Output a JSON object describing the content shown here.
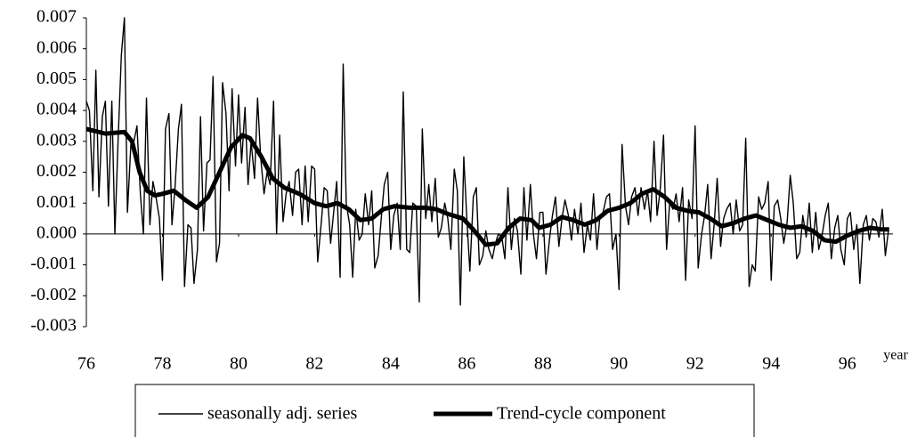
{
  "chart_data": {
    "type": "line",
    "x_label": "year",
    "xlim": [
      76,
      97.2
    ],
    "xticks": [
      76,
      78,
      80,
      82,
      84,
      86,
      88,
      90,
      92,
      94,
      96
    ],
    "ylim": [
      -0.003,
      0.007
    ],
    "yticks": [
      {
        "value": 0.007,
        "label": "0.007"
      },
      {
        "value": 0.006,
        "label": "0.006"
      },
      {
        "value": 0.005,
        "label": "0.005"
      },
      {
        "value": 0.004,
        "label": "0.004"
      },
      {
        "value": 0.003,
        "label": "0.003"
      },
      {
        "value": 0.002,
        "label": "0.002"
      },
      {
        "value": 0.001,
        "label": "0.001"
      },
      {
        "value": 0,
        "label": "0.000"
      },
      {
        "value": -0.001,
        "label": "-0.001"
      },
      {
        "value": -0.002,
        "label": "-0.002"
      },
      {
        "value": -0.003,
        "label": "-0.003"
      }
    ],
    "series": [
      {
        "name": "seasonally adj. series",
        "color": "#000000",
        "x": [
          76,
          76.08,
          76.17,
          76.25,
          76.33,
          76.42,
          76.5,
          76.58,
          76.67,
          76.75,
          76.83,
          76.92,
          77,
          77.08,
          77.17,
          77.25,
          77.33,
          77.42,
          77.5,
          77.58,
          77.67,
          77.75,
          77.83,
          77.92,
          78,
          78.08,
          78.17,
          78.25,
          78.33,
          78.42,
          78.5,
          78.58,
          78.67,
          78.75,
          78.83,
          78.92,
          79,
          79.08,
          79.17,
          79.25,
          79.33,
          79.42,
          79.5,
          79.58,
          79.67,
          79.75,
          79.83,
          79.92,
          80,
          80.08,
          80.17,
          80.25,
          80.33,
          80.42,
          80.5,
          80.58,
          80.67,
          80.75,
          80.83,
          80.92,
          81,
          81.08,
          81.17,
          81.25,
          81.33,
          81.42,
          81.5,
          81.58,
          81.67,
          81.75,
          81.83,
          81.92,
          82,
          82.08,
          82.17,
          82.25,
          82.33,
          82.42,
          82.5,
          82.58,
          82.67,
          82.75,
          82.83,
          82.92,
          83,
          83.08,
          83.17,
          83.25,
          83.33,
          83.42,
          83.5,
          83.58,
          83.67,
          83.75,
          83.83,
          83.92,
          84,
          84.08,
          84.17,
          84.25,
          84.33,
          84.42,
          84.5,
          84.58,
          84.67,
          84.75,
          84.83,
          84.92,
          85,
          85.08,
          85.17,
          85.25,
          85.33,
          85.42,
          85.5,
          85.58,
          85.67,
          85.75,
          85.83,
          85.92,
          86,
          86.08,
          86.17,
          86.25,
          86.33,
          86.42,
          86.5,
          86.58,
          86.67,
          86.75,
          86.83,
          86.92,
          87,
          87.08,
          87.17,
          87.25,
          87.33,
          87.42,
          87.5,
          87.58,
          87.67,
          87.75,
          87.83,
          87.92,
          88,
          88.08,
          88.17,
          88.25,
          88.33,
          88.42,
          88.5,
          88.58,
          88.67,
          88.75,
          88.83,
          88.92,
          89,
          89.08,
          89.17,
          89.25,
          89.33,
          89.42,
          89.5,
          89.58,
          89.67,
          89.75,
          89.83,
          89.92,
          90,
          90.08,
          90.17,
          90.25,
          90.33,
          90.42,
          90.5,
          90.58,
          90.67,
          90.75,
          90.83,
          90.92,
          91,
          91.08,
          91.17,
          91.25,
          91.33,
          91.42,
          91.5,
          91.58,
          91.67,
          91.75,
          91.83,
          91.92,
          92,
          92.08,
          92.17,
          92.25,
          92.33,
          92.42,
          92.5,
          92.58,
          92.67,
          92.75,
          92.83,
          92.92,
          93,
          93.08,
          93.17,
          93.25,
          93.33,
          93.42,
          93.5,
          93.58,
          93.67,
          93.75,
          93.83,
          93.92,
          94,
          94.08,
          94.17,
          94.25,
          94.33,
          94.42,
          94.5,
          94.58,
          94.67,
          94.75,
          94.83,
          94.92,
          95,
          95.08,
          95.17,
          95.25,
          95.33,
          95.42,
          95.5,
          95.58,
          95.67,
          95.75,
          95.83,
          95.92,
          96,
          96.08,
          96.17,
          96.25,
          96.33,
          96.42,
          96.5,
          96.58,
          96.67,
          96.75,
          96.83,
          96.92,
          97,
          97.08
        ],
        "values": [
          0.0043,
          0.004,
          0.0014,
          0.0053,
          0.0012,
          0.0038,
          0.0043,
          0.0009,
          0.0043,
          0,
          0.0029,
          0.0058,
          0.007,
          0.0007,
          0.0029,
          0.003,
          0.0035,
          0.0013,
          0,
          0.0044,
          0.0003,
          0.0017,
          0.0012,
          0.0005,
          -0.0015,
          0.0034,
          0.0039,
          0.0003,
          0.0015,
          0.0034,
          0.0042,
          -0.0017,
          0.0003,
          0.0002,
          -0.0016,
          -0.0005,
          0.0038,
          0.0001,
          0.0023,
          0.0024,
          0.0051,
          -0.0009,
          -0.0003,
          0.0049,
          0.0039,
          0.0014,
          0.0047,
          0.0022,
          0.0045,
          0.0023,
          0.0041,
          0.0016,
          0.003,
          0.0018,
          0.0044,
          0.0025,
          0.0013,
          0.002,
          0.0016,
          0.0043,
          0,
          0.0032,
          0.0004,
          0.0013,
          0.0017,
          0.0006,
          0.002,
          0.0021,
          0.0003,
          0.0022,
          0.0004,
          0.0022,
          0.0021,
          -0.0009,
          0.0003,
          0.0015,
          0.0014,
          -0.0003,
          0.0007,
          0.0017,
          -0.0014,
          0.0055,
          0.001,
          0.0003,
          -0.0014,
          0.0008,
          -0.0002,
          0,
          0.0013,
          0.0003,
          0.0014,
          -0.0011,
          -0.0007,
          0.0005,
          0.0016,
          0.002,
          -0.0005,
          0.0006,
          0.001,
          -0.0005,
          0.0046,
          -0.0005,
          -0.0006,
          0.001,
          0.0009,
          -0.0022,
          0.0034,
          0.0005,
          0.0016,
          0.0004,
          0.0018,
          -0.0001,
          0.0002,
          0.001,
          0.0005,
          -0.0005,
          0.0021,
          0.0014,
          -0.0023,
          0.0025,
          0.0005,
          -0.0012,
          0.0012,
          0.0015,
          -0.001,
          -0.0007,
          0.0001,
          -0.0005,
          -0.0008,
          -0.0003,
          0,
          -0.0001,
          -0.0008,
          0.0015,
          -0.0005,
          0.0005,
          0.0001,
          -0.0013,
          0.0015,
          -0.0002,
          0.0016,
          0,
          -0.0008,
          0.0007,
          0.0007,
          -0.0013,
          -0.0002,
          0.0006,
          0.0012,
          -0.0004,
          0.0005,
          0.0011,
          0.0006,
          -0.0002,
          0.0008,
          0,
          0.001,
          -0.0006,
          0.0003,
          -0.0002,
          0.0013,
          -0.0005,
          0.0006,
          0.0007,
          0.0012,
          0.0013,
          -0.0005,
          0,
          -0.0018,
          0.0029,
          0.0009,
          0.0003,
          0.0012,
          0.0015,
          0.0006,
          0.0015,
          0.0008,
          0.0014,
          0.0004,
          0.003,
          0.0006,
          0.0014,
          0.0032,
          -0.0005,
          0.001,
          0.0008,
          0.0013,
          0.0004,
          0.0015,
          -0.0015,
          0.0011,
          0.0005,
          0.0035,
          -0.0011,
          0,
          0.0006,
          0.0016,
          -0.0008,
          0.0003,
          0.0018,
          -0.0004,
          0.0005,
          0.0008,
          0.001,
          0,
          0.0011,
          0.0001,
          0.0003,
          0.0031,
          -0.0017,
          -0.001,
          -0.0012,
          0.0012,
          0.0008,
          0.001,
          0.0017,
          -0.0015,
          0.0009,
          0.0011,
          0.0005,
          -0.0003,
          0.0004,
          0.0019,
          0.001,
          -0.0008,
          -0.0006,
          0.0006,
          -0.0001,
          0.001,
          -0.0006,
          0.0007,
          -0.0005,
          -0.0001,
          0.0006,
          0.001,
          -0.0008,
          0.0002,
          0.0006,
          -0.0005,
          -0.001,
          0.0005,
          0.0007,
          -0.0005,
          0.0003,
          -0.0016,
          0.0003,
          0.0006,
          -0.0002,
          0.0005,
          0.0004,
          -0.0001,
          0.0008,
          -0.0007,
          0.0001
        ]
      },
      {
        "name": "Trend-cycle component",
        "color": "#000000",
        "x": [
          76,
          76.5,
          77,
          77.2,
          77.4,
          77.6,
          77.8,
          78,
          78.3,
          78.6,
          78.9,
          79.2,
          79.5,
          79.8,
          80.1,
          80.3,
          80.6,
          80.9,
          81.2,
          81.6,
          82,
          82.3,
          82.6,
          82.9,
          83.2,
          83.5,
          83.8,
          84.1,
          84.5,
          84.9,
          85.2,
          85.5,
          85.9,
          86.2,
          86.5,
          86.8,
          87.1,
          87.4,
          87.7,
          87.9,
          88.2,
          88.5,
          88.8,
          89.1,
          89.4,
          89.7,
          90,
          90.3,
          90.6,
          90.9,
          91.2,
          91.5,
          91.8,
          92.1,
          92.4,
          92.7,
          93,
          93.3,
          93.6,
          93.9,
          94.2,
          94.5,
          94.8,
          95.1,
          95.4,
          95.7,
          96,
          96.3,
          96.6,
          96.9,
          97.1
        ],
        "values": [
          0.0034,
          0.00325,
          0.0033,
          0.003,
          0.002,
          0.0014,
          0.00125,
          0.0013,
          0.0014,
          0.0011,
          0.00085,
          0.0012,
          0.002,
          0.0028,
          0.0032,
          0.0031,
          0.0025,
          0.0018,
          0.0015,
          0.0013,
          0.001,
          0.0009,
          0.001,
          0.0008,
          0.00045,
          0.0005,
          0.0008,
          0.0009,
          0.00085,
          0.00085,
          0.0008,
          0.00065,
          0.0005,
          0.0001,
          -0.00035,
          -0.0003,
          0.0002,
          0.0005,
          0.00045,
          0.0002,
          0.0003,
          0.00055,
          0.00045,
          0.0003,
          0.00045,
          0.00075,
          0.00085,
          0.001,
          0.0013,
          0.00145,
          0.0012,
          0.00085,
          0.00075,
          0.0007,
          0.0005,
          0.00025,
          0.00035,
          0.0005,
          0.0006,
          0.00045,
          0.0003,
          0.0002,
          0.00025,
          0.0001,
          -0.0002,
          -0.00025,
          -5e-05,
          0.0001,
          0.0002,
          0.00015,
          0.00015
        ]
      }
    ]
  }
}
